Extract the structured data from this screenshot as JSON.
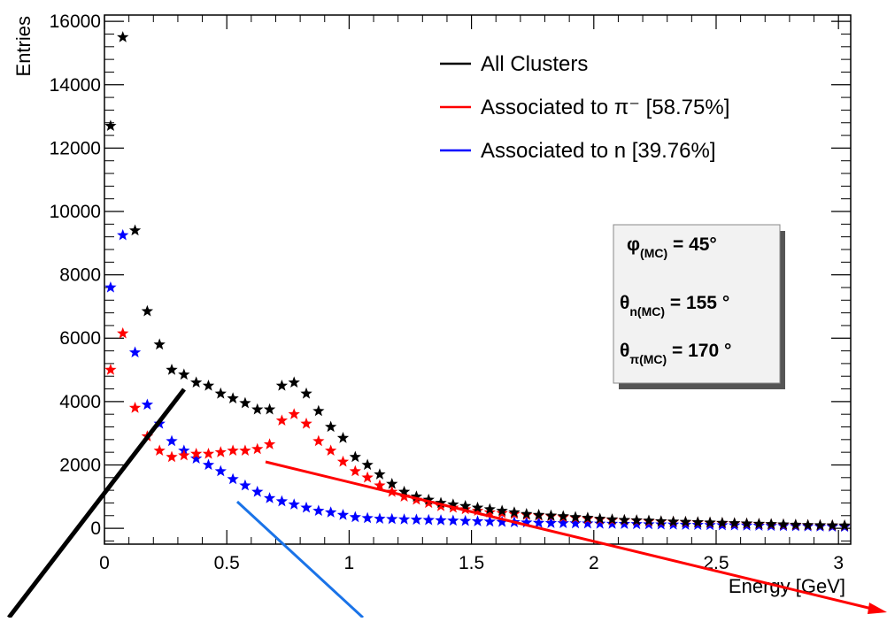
{
  "chart_data": {
    "type": "scatter",
    "xlabel": "Energy [GeV]",
    "ylabel": "Entries",
    "xlim": [
      0,
      3.05
    ],
    "ylim": [
      -500,
      16200
    ],
    "x_ticks": [
      "0",
      "0.5",
      "1",
      "1.5",
      "2",
      "2.5",
      "3"
    ],
    "y_ticks": [
      "0",
      "2000",
      "4000",
      "6000",
      "8000",
      "10000",
      "12000",
      "14000",
      "16000"
    ],
    "legend_position": "top-right",
    "series": [
      {
        "name": "All Clusters",
        "color": "#000000",
        "marker": "star",
        "x": [
          0.025,
          0.075,
          0.125,
          0.175,
          0.225,
          0.275,
          0.325,
          0.375,
          0.425,
          0.475,
          0.525,
          0.575,
          0.625,
          0.675,
          0.725,
          0.775,
          0.825,
          0.875,
          0.925,
          0.975,
          1.025,
          1.075,
          1.125,
          1.175,
          1.225,
          1.275,
          1.325,
          1.375,
          1.425,
          1.475,
          1.525,
          1.575,
          1.625,
          1.675,
          1.725,
          1.775,
          1.825,
          1.875,
          1.925,
          1.975,
          2.025,
          2.075,
          2.125,
          2.175,
          2.225,
          2.275,
          2.325,
          2.375,
          2.425,
          2.475,
          2.525,
          2.575,
          2.625,
          2.675,
          2.725,
          2.775,
          2.825,
          2.875,
          2.925,
          2.975,
          3.025
        ],
        "y": [
          12700,
          15500,
          9400,
          6850,
          5800,
          5000,
          4850,
          4600,
          4500,
          4250,
          4100,
          3950,
          3750,
          3750,
          4500,
          4600,
          4250,
          3700,
          3200,
          2850,
          2250,
          2000,
          1700,
          1400,
          1150,
          1000,
          900,
          800,
          750,
          700,
          650,
          600,
          550,
          500,
          450,
          420,
          400,
          380,
          350,
          330,
          300,
          280,
          260,
          250,
          240,
          220,
          210,
          200,
          190,
          180,
          170,
          160,
          150,
          140,
          130,
          120,
          110,
          100,
          95,
          90,
          85
        ]
      },
      {
        "name": "Associated to π⁻ [58.75%]",
        "color": "#ff0000",
        "marker": "star",
        "x": [
          0.025,
          0.075,
          0.125,
          0.175,
          0.225,
          0.275,
          0.325,
          0.375,
          0.425,
          0.475,
          0.525,
          0.575,
          0.625,
          0.675,
          0.725,
          0.775,
          0.825,
          0.875,
          0.925,
          0.975,
          1.025,
          1.075,
          1.125,
          1.175,
          1.225,
          1.275,
          1.325,
          1.375,
          1.425,
          1.475,
          1.525,
          1.575,
          1.625,
          1.675,
          1.725,
          1.775,
          1.825,
          1.875,
          1.925,
          1.975,
          2.025,
          2.075,
          2.125,
          2.175,
          2.225,
          2.275,
          2.325,
          2.375,
          2.425,
          2.475,
          2.525,
          2.575,
          2.625,
          2.675,
          2.725,
          2.775,
          2.825,
          2.875,
          2.925,
          2.975,
          3.025
        ],
        "y": [
          5000,
          6150,
          3800,
          2900,
          2450,
          2250,
          2300,
          2350,
          2350,
          2400,
          2450,
          2450,
          2500,
          2650,
          3400,
          3600,
          3300,
          2750,
          2450,
          2100,
          1800,
          1600,
          1350,
          1150,
          1000,
          900,
          800,
          700,
          650,
          600,
          550,
          500,
          480,
          450,
          420,
          400,
          380,
          350,
          330,
          300,
          280,
          260,
          250,
          240,
          220,
          210,
          200,
          190,
          180,
          170,
          160,
          150,
          140,
          130,
          120,
          110,
          100,
          95,
          90,
          85,
          80
        ]
      },
      {
        "name": "Associated to n [39.76%]",
        "color": "#0000ff",
        "marker": "star",
        "x": [
          0.025,
          0.075,
          0.125,
          0.175,
          0.225,
          0.275,
          0.325,
          0.375,
          0.425,
          0.475,
          0.525,
          0.575,
          0.625,
          0.675,
          0.725,
          0.775,
          0.825,
          0.875,
          0.925,
          0.975,
          1.025,
          1.075,
          1.125,
          1.175,
          1.225,
          1.275,
          1.325,
          1.375,
          1.425,
          1.475,
          1.525,
          1.575,
          1.625,
          1.675,
          1.725,
          1.775,
          1.825,
          1.875,
          1.925,
          1.975,
          2.025,
          2.075,
          2.125,
          2.175,
          2.225,
          2.275,
          2.325,
          2.375,
          2.425,
          2.475,
          2.525,
          2.575,
          2.625,
          2.675,
          2.725,
          2.775,
          2.825,
          2.875,
          2.925,
          2.975,
          3.025
        ],
        "y": [
          7600,
          9250,
          5550,
          3900,
          3300,
          2750,
          2450,
          2200,
          2000,
          1800,
          1550,
          1350,
          1150,
          950,
          850,
          750,
          650,
          550,
          500,
          420,
          350,
          320,
          300,
          290,
          280,
          270,
          260,
          250,
          240,
          230,
          220,
          210,
          200,
          190,
          180,
          170,
          165,
          160,
          155,
          150,
          145,
          140,
          135,
          130,
          125,
          120,
          115,
          110,
          105,
          100,
          95,
          90,
          85,
          80,
          75,
          70,
          65,
          60,
          55,
          50,
          45
        ]
      }
    ],
    "info_box": [
      {
        "symbol": "φ",
        "sub": "(MC)",
        "value": " =  45°"
      },
      {
        "symbol": "θ",
        "sub": "n(MC)",
        "value": " = 155 °"
      },
      {
        "symbol": "θ",
        "sub": "π(MC)",
        "value": " = 170 °"
      }
    ]
  }
}
